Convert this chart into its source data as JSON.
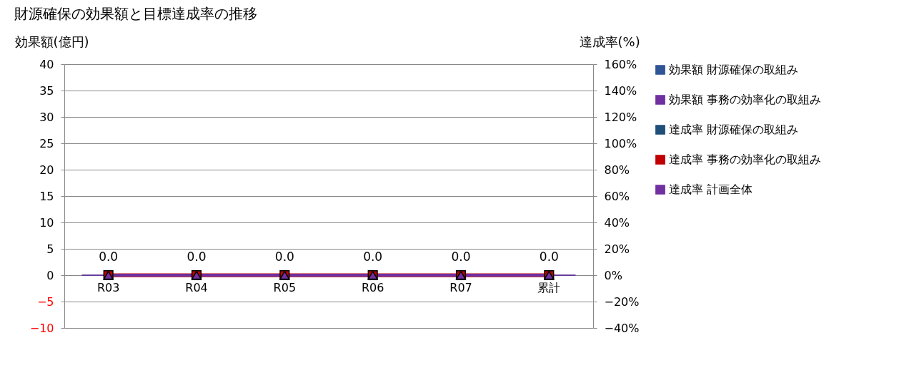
{
  "chart_data": {
    "type": "bar",
    "title": "財源確保の効果額と目標達成率の推移",
    "ylabel": "効果額(億円)",
    "y2label": "達成率(%)",
    "categories": [
      "R03",
      "R04",
      "R05",
      "R06",
      "R07",
      "累計"
    ],
    "series": [
      {
        "name": "効果額 財源確保の取組み",
        "color": "#2f5597",
        "values": [
          0,
          0,
          0,
          0,
          0,
          0
        ]
      },
      {
        "name": "効果額 事務の効率化の取組み",
        "color": "#7030a0",
        "values": [
          0,
          0,
          0,
          0,
          0,
          0
        ]
      },
      {
        "name": "達成率 財源確保の取組み",
        "type": "line",
        "axis": "y2",
        "marker": "diamond",
        "color": "#1f4e79",
        "values": [
          null,
          null,
          null,
          null,
          null,
          null
        ]
      },
      {
        "name": "達成率 事務の効率化の取組み",
        "type": "line",
        "axis": "y2",
        "marker": "square",
        "color": "#c00000",
        "values": [
          0,
          0,
          0,
          0,
          0,
          0
        ]
      },
      {
        "name": "達成率 計画全体",
        "type": "line",
        "axis": "y2",
        "marker": "triangle",
        "color": "#7030a0",
        "values": [
          0,
          0,
          0,
          0,
          0,
          0
        ]
      }
    ],
    "totals": [
      "0.0",
      "0.0",
      "0.0",
      "0.0",
      "0.0",
      "0.0"
    ],
    "ylim": [
      -10,
      40
    ],
    "yticks": [
      {
        "value": -10,
        "label": "−10"
      },
      {
        "value": -5,
        "label": "−5"
      },
      0,
      5,
      10,
      15,
      20,
      25,
      30,
      35,
      40
    ],
    "y2lim": [
      -40,
      160
    ],
    "y2ticks": [
      {
        "value": -40,
        "label": "−40%"
      },
      {
        "value": -20,
        "label": "−20%"
      },
      {
        "value": 0,
        "label": "0%"
      },
      {
        "value": 20,
        "label": "20%"
      },
      {
        "value": 40,
        "label": "40%"
      },
      {
        "value": 60,
        "label": "60%"
      },
      {
        "value": 80,
        "label": "80%"
      },
      {
        "value": 100,
        "label": "100%"
      },
      {
        "value": 120,
        "label": "120%"
      },
      {
        "value": 140,
        "label": "140%"
      },
      {
        "value": 160,
        "label": "160%"
      }
    ],
    "grid": "y",
    "legend": "right"
  }
}
